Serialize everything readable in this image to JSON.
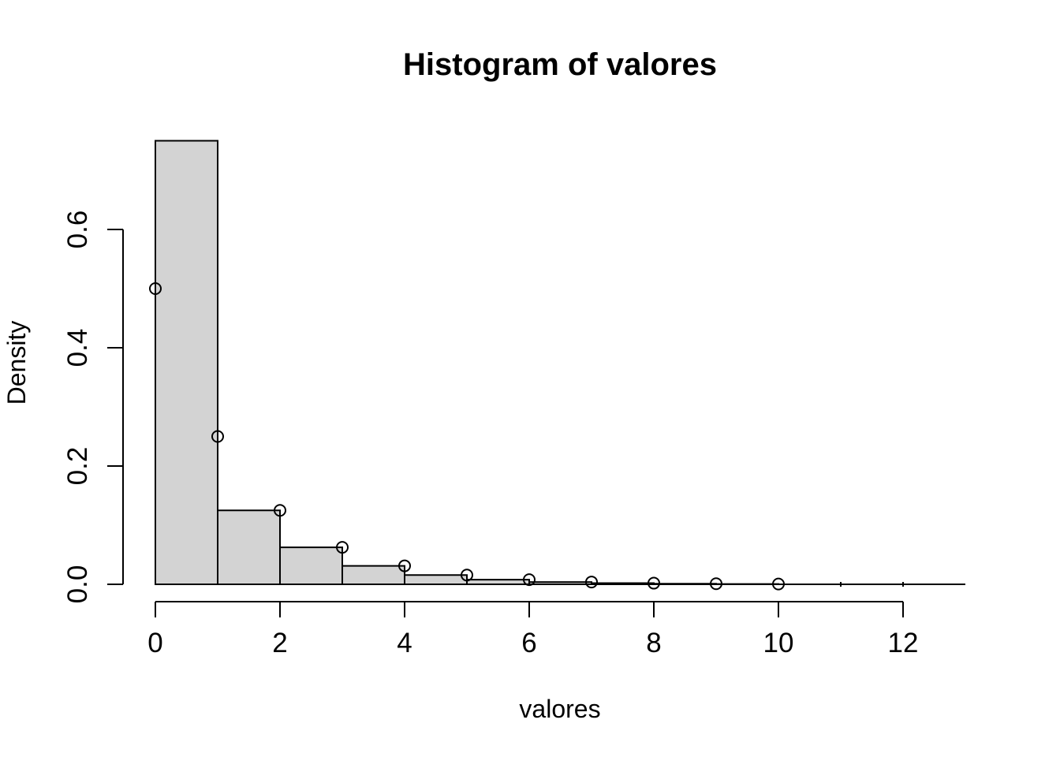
{
  "figure": {
    "background_color": "#ffffff",
    "foreground_color": "#000000",
    "bar_fill_color": "#d3d3d3",
    "bar_border_color": "#000000"
  },
  "chart_data": {
    "type": "bar",
    "subtype": "histogram-of-density-with-pmf-points",
    "title": "Histogram of valores",
    "xlabel": "valores",
    "ylabel": "Density",
    "grid": false,
    "legend": false,
    "xlim": [
      0,
      13
    ],
    "ylim": [
      0,
      0.75
    ],
    "x_ticks": [
      0,
      2,
      4,
      6,
      8,
      10,
      12
    ],
    "x_tick_labels": [
      "0",
      "2",
      "4",
      "6",
      "8",
      "10",
      "12"
    ],
    "y_ticks": [
      0.0,
      0.2,
      0.4,
      0.6
    ],
    "y_tick_labels": [
      "0.0",
      "0.2",
      "0.4",
      "0.6"
    ],
    "histogram": {
      "breaks": [
        0,
        1,
        2,
        3,
        4,
        5,
        6,
        7,
        8,
        9,
        10,
        11,
        12,
        13
      ],
      "densities": [
        0.75,
        0.125,
        0.0625,
        0.03125,
        0.015625,
        0.0078125,
        0.00390625,
        0.001953125,
        0.0009765625,
        0.00048828125,
        0,
        0,
        0
      ]
    },
    "points": {
      "marker": "open-circle",
      "x": [
        0,
        1,
        2,
        3,
        4,
        5,
        6,
        7,
        8,
        9,
        10
      ],
      "density": [
        0.5,
        0.25,
        0.125,
        0.0625,
        0.03125,
        0.015625,
        0.0078125,
        0.00390625,
        0.001953125,
        0.0009765625,
        0.00048828125
      ]
    }
  }
}
